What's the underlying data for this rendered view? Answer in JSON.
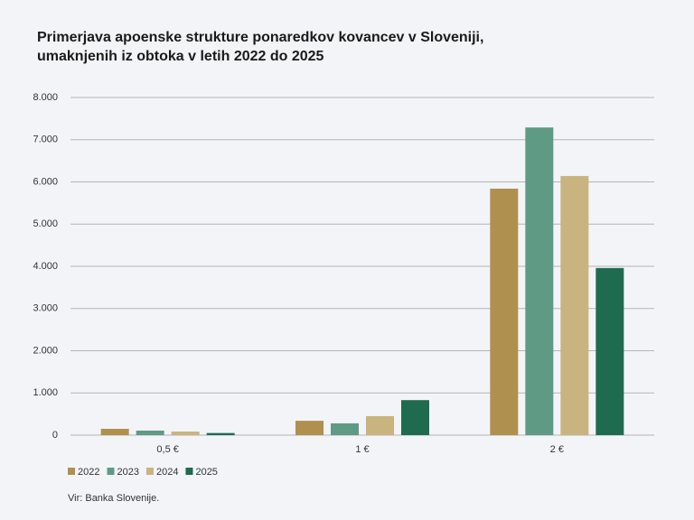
{
  "chart_data": {
    "type": "bar",
    "title": [
      "Primerjava apoenske strukture ponaredkov kovancev v Sloveniji,",
      "umaknjenih iz obtoka v letih 2022 do 2025"
    ],
    "categories": [
      "0,5 €",
      "1 €",
      "2 €"
    ],
    "series": [
      {
        "name": "2022",
        "color": "#b0904f",
        "values": [
          150,
          340,
          5840
        ]
      },
      {
        "name": "2023",
        "color": "#5f9a85",
        "values": [
          107,
          280,
          7290
        ]
      },
      {
        "name": "2024",
        "color": "#c9b47f",
        "values": [
          85,
          450,
          6140
        ]
      },
      {
        "name": "2025",
        "color": "#1f6b50",
        "values": [
          50,
          830,
          3960
        ]
      }
    ],
    "ylim": [
      0,
      8000
    ],
    "yticks": [
      0,
      {
        "value": 1000,
        "label": "1.000"
      },
      {
        "value": 2000,
        "label": "2.000"
      },
      {
        "value": 3000,
        "label": "3.000"
      },
      {
        "value": 4000,
        "label": "4.000"
      },
      {
        "value": 5000,
        "label": "5.000"
      },
      {
        "value": 6000,
        "label": "6.000"
      },
      {
        "value": 7000,
        "label": "7.000"
      },
      {
        "value": 8000,
        "label": "8.000"
      }
    ],
    "grid": true,
    "source": "Vir: Banka Slovenije."
  }
}
